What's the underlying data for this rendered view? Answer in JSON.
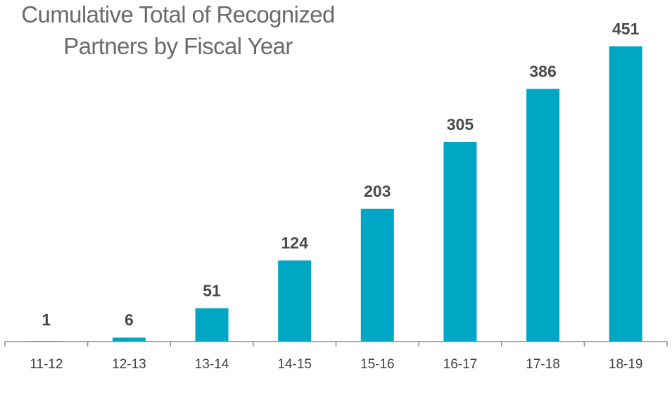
{
  "chart_data": {
    "type": "bar",
    "title_lines": [
      "Cumulative Total of Recognized",
      "Partners by Fiscal Year"
    ],
    "categories": [
      "11-12",
      "12-13",
      "13-14",
      "14-15",
      "15-16",
      "16-17",
      "17-18",
      "18-19"
    ],
    "values": [
      1,
      6,
      51,
      124,
      203,
      305,
      386,
      451
    ],
    "data_labels": [
      "1",
      "6",
      "51",
      "124",
      "203",
      "305",
      "386",
      "451"
    ],
    "xlabel": "",
    "ylabel": "",
    "ylim": [
      0,
      451
    ],
    "grid": false,
    "legend": "none",
    "bar_color": "#00a7c4"
  }
}
